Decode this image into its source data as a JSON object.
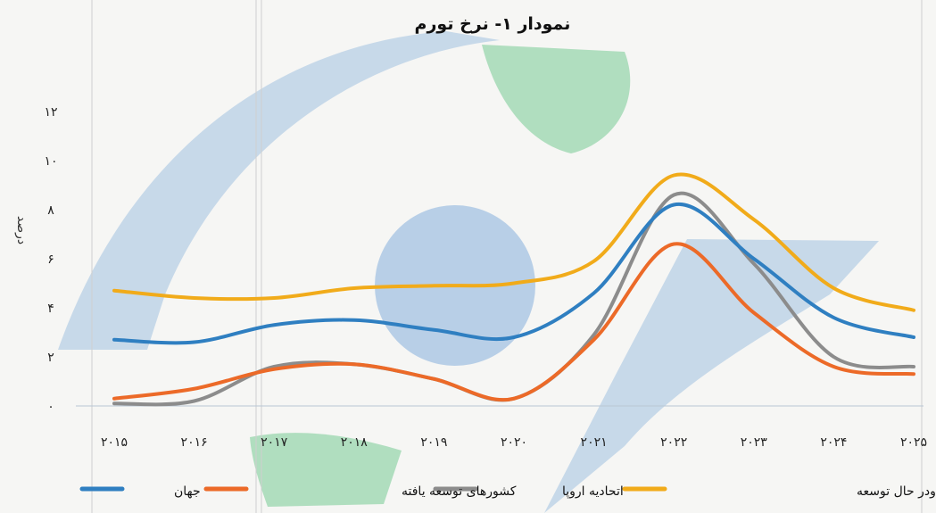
{
  "chart_data": {
    "type": "line",
    "title": "نمودار ۱- نرخ تورم",
    "ylabel": "درصد",
    "xlabel": "",
    "categories": [
      "۲۰۱۵",
      "۲۰۱۶",
      "۲۰۱۷",
      "۲۰۱۸",
      "۲۰۱۹",
      "۲۰۲۰",
      "۲۰۲۱",
      "۲۰۲۲",
      "۲۰۲۳",
      "۲۰۲۴",
      "۲۰۲۵"
    ],
    "yticks": [
      "۰",
      "۲",
      "۴",
      "۶",
      "۸",
      "۱۰",
      "۱۲"
    ],
    "ylim": [
      0,
      12
    ],
    "grid": false,
    "legend_position": "bottom",
    "series": [
      {
        "name": "جهان",
        "color": "#2f7fc1",
        "values": [
          2.7,
          2.6,
          3.3,
          3.5,
          3.1,
          2.8,
          4.6,
          8.2,
          6.0,
          3.6,
          2.8
        ]
      },
      {
        "name": "کشورهای توسعه یافته",
        "color": "#ec6a28",
        "values": [
          0.3,
          0.7,
          1.5,
          1.7,
          1.1,
          0.3,
          2.7,
          6.6,
          3.8,
          1.6,
          1.3
        ]
      },
      {
        "name": "اتحادیه اروپا",
        "color": "#8c8c8c",
        "values": [
          0.1,
          0.2,
          1.6,
          1.7,
          1.1,
          0.3,
          2.9,
          8.6,
          5.8,
          2.0,
          1.6
        ]
      },
      {
        "name": "کشورهای نوظهور ودر حال توسعه",
        "color": "#f1ab1a",
        "values": [
          4.7,
          4.4,
          4.4,
          4.8,
          4.9,
          5.0,
          5.9,
          9.4,
          7.6,
          4.8,
          3.9
        ]
      }
    ]
  }
}
